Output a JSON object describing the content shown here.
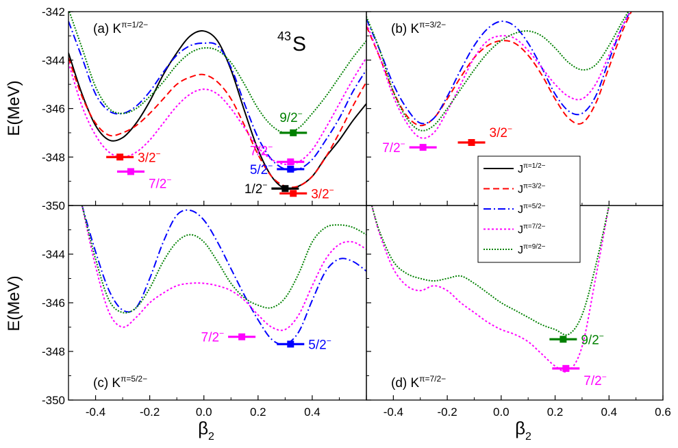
{
  "figure": {
    "nucleus_mass": "43",
    "nucleus_symbol": "S",
    "ylabel": "E(MeV)",
    "xlabel_main": "β",
    "xlabel_sub": "2"
  },
  "colors": {
    "J1/2": "#000000",
    "J3/2": "#ff0000",
    "J5/2": "#0000ff",
    "J7/2": "#ff00ff",
    "J9/2": "#008000"
  },
  "line_styles": {
    "J1/2": "solid",
    "J3/2": "dash",
    "J5/2": "dashdot",
    "J7/2": "dot",
    "J9/2": "shortdot"
  },
  "legend": [
    {
      "key": "J1/2",
      "label": "J^π=1/2^−"
    },
    {
      "key": "J3/2",
      "label": "J^π=3/2^−"
    },
    {
      "key": "J5/2",
      "label": "J^π=5/2^−"
    },
    {
      "key": "J7/2",
      "label": "J^π=7/2^−"
    },
    {
      "key": "J9/2",
      "label": "J^π=9/2^−"
    }
  ],
  "chart_data": [
    {
      "type": "line",
      "panel": "a",
      "label": "(a) K^π=1/2^−",
      "xlim": [
        -0.5,
        0.6
      ],
      "ylim": [
        -350,
        -342
      ],
      "yticks": [
        -342,
        -344,
        -346,
        -348,
        -350
      ],
      "series": [
        {
          "key": "J1/2",
          "name": "J^π=1/2^−",
          "x": [
            -0.5,
            -0.45,
            -0.4,
            -0.35,
            -0.3,
            -0.25,
            -0.2,
            -0.15,
            -0.1,
            -0.05,
            0,
            0.05,
            0.1,
            0.15,
            0.2,
            0.25,
            0.3,
            0.35,
            0.4,
            0.45,
            0.5,
            0.55,
            0.6
          ],
          "y": [
            -343.7,
            -345.4,
            -346.7,
            -347.3,
            -347.2,
            -346.6,
            -345.7,
            -344.6,
            -343.7,
            -343.0,
            -342.8,
            -343.2,
            -344.4,
            -346.1,
            -347.7,
            -348.8,
            -349.3,
            -349.2,
            -348.8,
            -348.0,
            -347.3,
            -346.5,
            -345.8
          ]
        },
        {
          "key": "J3/2",
          "name": "J^π=3/2^−",
          "x": [
            -0.5,
            -0.45,
            -0.4,
            -0.35,
            -0.3,
            -0.25,
            -0.2,
            -0.15,
            -0.1,
            -0.05,
            0,
            0.05,
            0.1,
            0.15,
            0.2,
            0.25,
            0.3,
            0.35,
            0.4,
            0.45,
            0.5,
            0.55,
            0.6
          ],
          "y": [
            -343.9,
            -345.5,
            -346.6,
            -347.1,
            -347.0,
            -346.7,
            -346.2,
            -345.6,
            -345.0,
            -344.7,
            -344.6,
            -344.9,
            -345.6,
            -346.7,
            -347.9,
            -348.8,
            -349.2,
            -349.2,
            -348.8,
            -348.0,
            -347.0,
            -345.9,
            -344.9
          ]
        },
        {
          "key": "J5/2",
          "name": "J^π=5/2^−",
          "x": [
            -0.5,
            -0.45,
            -0.4,
            -0.35,
            -0.3,
            -0.25,
            -0.2,
            -0.15,
            -0.1,
            -0.05,
            0,
            0.05,
            0.1,
            0.15,
            0.2,
            0.25,
            0.3,
            0.35,
            0.4,
            0.45,
            0.5,
            0.55,
            0.6
          ],
          "y": [
            -342.4,
            -343.9,
            -345.4,
            -346.1,
            -346.2,
            -345.9,
            -345.3,
            -344.5,
            -343.8,
            -343.4,
            -343.3,
            -343.4,
            -344.3,
            -345.8,
            -347.2,
            -348.1,
            -348.5,
            -348.5,
            -348.1,
            -347.3,
            -346.4,
            -345.3,
            -344.4
          ]
        },
        {
          "key": "J7/2",
          "name": "J^π=7/2^−",
          "x": [
            -0.5,
            -0.45,
            -0.4,
            -0.35,
            -0.3,
            -0.25,
            -0.2,
            -0.15,
            -0.1,
            -0.05,
            0,
            0.05,
            0.1,
            0.15,
            0.2,
            0.25,
            0.3,
            0.35,
            0.4,
            0.45,
            0.5,
            0.55,
            0.6
          ],
          "y": [
            -344.1,
            -345.9,
            -347.1,
            -347.8,
            -348.0,
            -347.8,
            -347.3,
            -346.6,
            -345.9,
            -345.4,
            -345.2,
            -345.4,
            -346.0,
            -346.8,
            -347.6,
            -348.1,
            -348.3,
            -348.2,
            -347.7,
            -346.8,
            -345.8,
            -344.8,
            -343.9
          ]
        },
        {
          "key": "J9/2",
          "name": "J^π=9/2^−",
          "x": [
            -0.5,
            -0.45,
            -0.4,
            -0.35,
            -0.3,
            -0.25,
            -0.2,
            -0.15,
            -0.1,
            -0.05,
            0,
            0.05,
            0.1,
            0.15,
            0.2,
            0.25,
            0.3,
            0.35,
            0.4,
            0.45,
            0.5,
            0.55,
            0.6
          ],
          "y": [
            -341.9,
            -343.5,
            -345.1,
            -346.0,
            -346.2,
            -346.0,
            -345.5,
            -344.9,
            -344.2,
            -343.7,
            -343.5,
            -343.6,
            -344.1,
            -345.0,
            -346.0,
            -346.7,
            -347.0,
            -346.8,
            -346.2,
            -345.5,
            -344.7,
            -343.9,
            -343.2
          ]
        }
      ],
      "levels": [
        {
          "key": "J3/2",
          "x": -0.31,
          "y": -348.0,
          "label": "3/2^−",
          "side": "right"
        },
        {
          "key": "J7/2",
          "x": -0.27,
          "y": -348.6,
          "label": "7/2^−",
          "side": "right-below"
        },
        {
          "key": "J9/2",
          "x": 0.33,
          "y": -347.0,
          "label": "9/2^−",
          "side": "above"
        },
        {
          "key": "J7/2",
          "x": 0.32,
          "y": -348.2,
          "label": "7/2^−",
          "side": "left-above"
        },
        {
          "key": "J5/2",
          "x": 0.32,
          "y": -348.5,
          "label": "5/2^−",
          "side": "left"
        },
        {
          "key": "J1/2",
          "x": 0.3,
          "y": -349.3,
          "label": "1/2^−",
          "side": "left"
        },
        {
          "key": "J3/2",
          "x": 0.33,
          "y": -349.5,
          "label": "3/2^−",
          "side": "right"
        }
      ]
    },
    {
      "type": "line",
      "panel": "b",
      "label": "(b) K^π=3/2^−",
      "xlim": [
        -0.5,
        0.6
      ],
      "ylim": [
        -350,
        -342
      ],
      "series": [
        {
          "key": "J3/2",
          "name": "J^π=3/2^−",
          "x": [
            -0.5,
            -0.45,
            -0.4,
            -0.35,
            -0.3,
            -0.25,
            -0.2,
            -0.15,
            -0.1,
            -0.05,
            0,
            0.05,
            0.1,
            0.15,
            0.2,
            0.25,
            0.3,
            0.35,
            0.4,
            0.45,
            0.5
          ],
          "y": [
            -342.6,
            -343.9,
            -345.3,
            -346.3,
            -346.7,
            -346.4,
            -345.6,
            -344.7,
            -343.9,
            -343.4,
            -343.2,
            -343.3,
            -343.8,
            -344.6,
            -345.6,
            -346.4,
            -346.6,
            -345.8,
            -344.3,
            -342.8,
            -341.6
          ]
        },
        {
          "key": "J5/2",
          "name": "J^π=5/2^−",
          "x": [
            -0.5,
            -0.45,
            -0.4,
            -0.35,
            -0.3,
            -0.25,
            -0.2,
            -0.15,
            -0.1,
            -0.05,
            0,
            0.05,
            0.1,
            0.15,
            0.2,
            0.25,
            0.3,
            0.35,
            0.4,
            0.45,
            0.5
          ],
          "y": [
            -342.3,
            -343.6,
            -345.0,
            -346.0,
            -346.6,
            -346.4,
            -345.5,
            -344.4,
            -343.4,
            -342.7,
            -342.4,
            -342.6,
            -343.3,
            -344.3,
            -345.4,
            -346.1,
            -346.2,
            -345.5,
            -344.0,
            -342.6,
            -341.6
          ]
        },
        {
          "key": "J7/2",
          "name": "J^π=7/2^−",
          "x": [
            -0.5,
            -0.45,
            -0.4,
            -0.35,
            -0.3,
            -0.25,
            -0.2,
            -0.15,
            -0.1,
            -0.05,
            0,
            0.05,
            0.1,
            0.15,
            0.2,
            0.25,
            0.3,
            0.35,
            0.4,
            0.45,
            0.5
          ],
          "y": [
            -342.5,
            -343.9,
            -345.5,
            -346.6,
            -347.2,
            -347.0,
            -346.1,
            -345.0,
            -343.9,
            -343.2,
            -343.0,
            -343.1,
            -343.6,
            -344.3,
            -345.0,
            -345.5,
            -345.6,
            -345.0,
            -343.8,
            -342.6,
            -341.6
          ]
        },
        {
          "key": "J9/2",
          "name": "J^π=9/2^−",
          "x": [
            -0.5,
            -0.45,
            -0.4,
            -0.35,
            -0.3,
            -0.25,
            -0.2,
            -0.15,
            -0.1,
            -0.05,
            0,
            0.05,
            0.1,
            0.15,
            0.2,
            0.25,
            0.3,
            0.35,
            0.4,
            0.45,
            0.5
          ],
          "y": [
            -342.2,
            -343.6,
            -345.3,
            -346.4,
            -346.9,
            -346.7,
            -346.0,
            -345.2,
            -344.4,
            -343.7,
            -343.2,
            -342.9,
            -342.8,
            -343.0,
            -343.5,
            -344.1,
            -344.4,
            -344.2,
            -343.4,
            -342.4,
            -341.5
          ]
        }
      ],
      "levels": [
        {
          "key": "J7/2",
          "x": -0.29,
          "y": -347.6,
          "label": "7/2^−",
          "side": "left"
        },
        {
          "key": "J3/2",
          "x": -0.11,
          "y": -347.4,
          "label": "3/2^−",
          "side": "right-above"
        }
      ]
    },
    {
      "type": "line",
      "panel": "c",
      "label": "(c) K^π=5/2^−",
      "xlim": [
        -0.5,
        0.6
      ],
      "ylim": [
        -350,
        -342
      ],
      "yticks": [
        -344,
        -346,
        -348,
        -350
      ],
      "series": [
        {
          "key": "J5/2",
          "name": "J^π=5/2^−",
          "x": [
            -0.45,
            -0.4,
            -0.35,
            -0.3,
            -0.25,
            -0.2,
            -0.15,
            -0.1,
            -0.05,
            0,
            0.05,
            0.1,
            0.15,
            0.2,
            0.25,
            0.3,
            0.35,
            0.4,
            0.45,
            0.5,
            0.55,
            0.6
          ],
          "y": [
            -342.0,
            -343.9,
            -345.5,
            -346.3,
            -346.2,
            -345.0,
            -343.5,
            -342.4,
            -342.2,
            -342.6,
            -343.5,
            -344.6,
            -345.7,
            -346.7,
            -347.5,
            -347.7,
            -347.2,
            -345.9,
            -344.7,
            -344.2,
            -344.3,
            -344.7
          ]
        },
        {
          "key": "J7/2",
          "name": "J^π=7/2^−",
          "x": [
            -0.45,
            -0.4,
            -0.35,
            -0.3,
            -0.25,
            -0.2,
            -0.15,
            -0.1,
            -0.05,
            0,
            0.05,
            0.1,
            0.15,
            0.2,
            0.25,
            0.3,
            0.35,
            0.4,
            0.45,
            0.5,
            0.55,
            0.6
          ],
          "y": [
            -342.0,
            -344.5,
            -346.4,
            -347.0,
            -346.6,
            -346.0,
            -345.6,
            -345.3,
            -345.2,
            -345.2,
            -345.3,
            -345.5,
            -345.9,
            -346.5,
            -347.0,
            -347.1,
            -346.5,
            -345.3,
            -344.2,
            -343.6,
            -343.5,
            -343.8
          ]
        },
        {
          "key": "J9/2",
          "name": "J^π=9/2^−",
          "x": [
            -0.45,
            -0.4,
            -0.35,
            -0.3,
            -0.25,
            -0.2,
            -0.15,
            -0.1,
            -0.05,
            0,
            0.05,
            0.1,
            0.15,
            0.2,
            0.25,
            0.3,
            0.35,
            0.4,
            0.45,
            0.5,
            0.55,
            0.6
          ],
          "y": [
            -342.0,
            -344.2,
            -345.9,
            -346.4,
            -346.2,
            -345.4,
            -344.3,
            -343.5,
            -343.2,
            -343.5,
            -344.3,
            -345.2,
            -345.8,
            -346.1,
            -346.2,
            -345.8,
            -344.8,
            -343.5,
            -342.9,
            -342.8,
            -342.9,
            -343.2
          ]
        }
      ],
      "levels": [
        {
          "key": "J7/2",
          "x": 0.14,
          "y": -347.4,
          "label": "7/2^−",
          "side": "left"
        },
        {
          "key": "J5/2",
          "x": 0.32,
          "y": -347.7,
          "label": "5/2^−",
          "side": "right"
        }
      ]
    },
    {
      "type": "line",
      "panel": "d",
      "label": "(d) K^π=7/2^−",
      "xlim": [
        -0.5,
        0.6
      ],
      "ylim": [
        -350,
        -342
      ],
      "xticks": [
        -0.4,
        -0.2,
        0.0,
        0.2,
        0.4,
        0.6
      ],
      "series": [
        {
          "key": "J7/2",
          "name": "J^π=7/2^−",
          "x": [
            -0.48,
            -0.45,
            -0.4,
            -0.35,
            -0.3,
            -0.25,
            -0.2,
            -0.15,
            -0.1,
            -0.05,
            0,
            0.05,
            0.1,
            0.15,
            0.2,
            0.25,
            0.3,
            0.35,
            0.4
          ],
          "y": [
            -342.0,
            -343.2,
            -344.6,
            -345.3,
            -345.5,
            -345.3,
            -345.5,
            -346.0,
            -346.4,
            -346.8,
            -347.1,
            -347.3,
            -347.6,
            -348.1,
            -348.6,
            -348.8,
            -347.8,
            -345.0,
            -342.0
          ]
        },
        {
          "key": "J9/2",
          "name": "J^π=9/2^−",
          "x": [
            -0.48,
            -0.45,
            -0.4,
            -0.35,
            -0.3,
            -0.25,
            -0.2,
            -0.15,
            -0.1,
            -0.05,
            0,
            0.05,
            0.1,
            0.15,
            0.2,
            0.25,
            0.3,
            0.35,
            0.4
          ],
          "y": [
            -342.0,
            -343.1,
            -344.3,
            -344.8,
            -345.0,
            -345.1,
            -345.0,
            -344.9,
            -345.2,
            -345.6,
            -346.0,
            -346.3,
            -346.6,
            -346.9,
            -347.1,
            -347.3,
            -346.5,
            -344.5,
            -342.0
          ]
        }
      ],
      "levels": [
        {
          "key": "J9/2",
          "x": 0.23,
          "y": -347.5,
          "label": "9/2^−",
          "side": "right"
        },
        {
          "key": "J7/2",
          "x": 0.24,
          "y": -348.7,
          "label": "7/2^−",
          "side": "right-below"
        }
      ]
    }
  ]
}
